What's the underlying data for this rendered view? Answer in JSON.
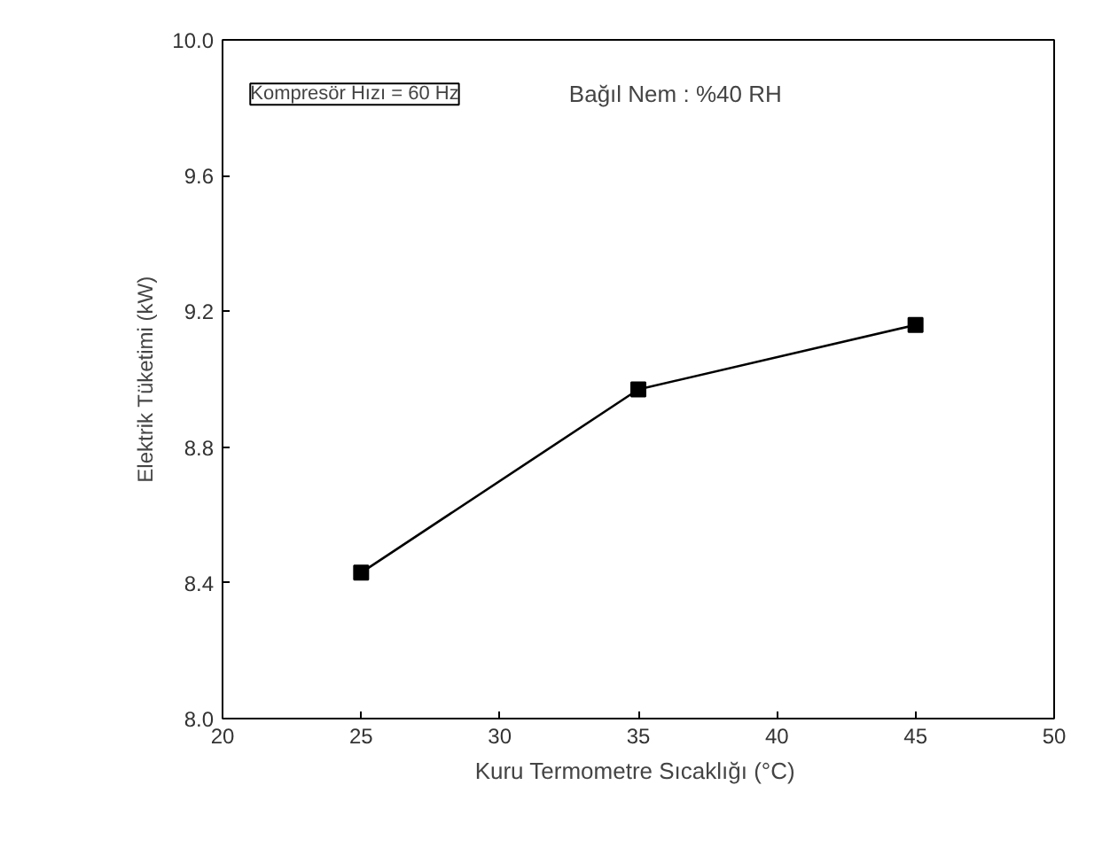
{
  "chart_data": {
    "type": "line",
    "xlabel": "Kuru Termometre Sıcaklığı  (°C)",
    "ylabel": "Elektrik Tüketimi (kW)",
    "x": [
      25,
      35,
      45
    ],
    "values": [
      8.43,
      8.97,
      9.16
    ],
    "color": "#000000",
    "marker": "square",
    "line_style": "solid",
    "grid": false,
    "xlim": [
      20,
      50
    ],
    "xticks": [
      20,
      25,
      30,
      35,
      40,
      45,
      50
    ],
    "ylim": [
      8.0,
      10.0
    ],
    "yticks": [
      {
        "value": 8.0,
        "label": "8.0"
      },
      {
        "value": 8.4,
        "label": "8.4"
      },
      {
        "value": 8.8,
        "label": "8.8"
      },
      {
        "value": 9.2,
        "label": "9.2"
      },
      {
        "value": 9.6,
        "label": "9.6"
      },
      {
        "value": 10.0,
        "label": "10.0"
      }
    ],
    "annotations": [
      "Kompresör Hızı = 60 Hz",
      "Bağıl Nem : %40 RH"
    ]
  }
}
